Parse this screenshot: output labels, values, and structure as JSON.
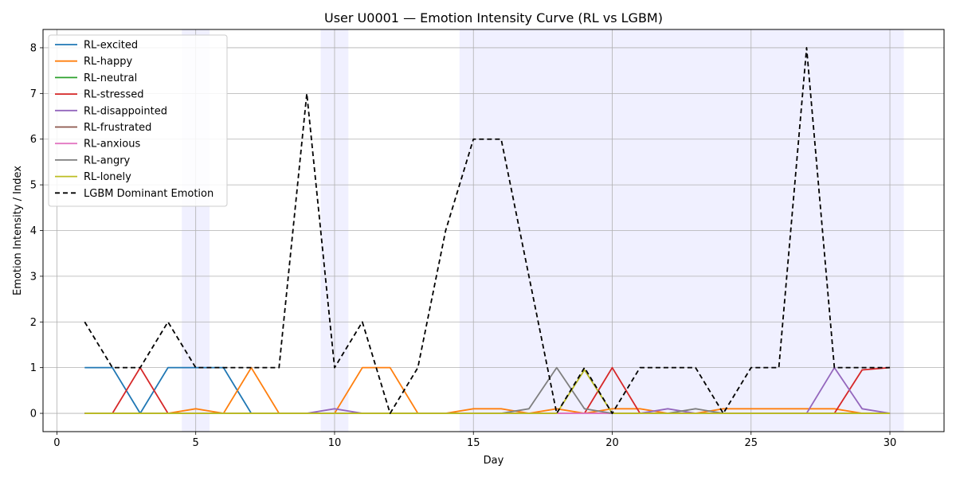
{
  "chart_data": {
    "type": "line",
    "title": "User U0001 — Emotion Intensity Curve (RL vs LGBM)",
    "xlabel": "Day",
    "ylabel": "Emotion Intensity / Index",
    "xlim": [
      -0.5,
      31.95
    ],
    "ylim": [
      -0.4,
      8.4
    ],
    "xticks": [
      0,
      5,
      10,
      15,
      20,
      25,
      30
    ],
    "yticks": [
      0,
      1,
      2,
      3,
      4,
      5,
      6,
      7,
      8
    ],
    "grid": true,
    "legend_position": "upper-left",
    "x": [
      1,
      2,
      3,
      4,
      5,
      6,
      7,
      8,
      9,
      10,
      11,
      12,
      13,
      14,
      15,
      16,
      17,
      18,
      19,
      20,
      21,
      22,
      23,
      24,
      25,
      26,
      27,
      28,
      29,
      30
    ],
    "shaded_days": [
      5,
      10,
      15,
      16,
      17,
      18,
      19,
      20,
      21,
      22,
      23,
      24,
      25,
      26,
      27,
      28,
      29,
      30
    ],
    "series": [
      {
        "name": "RL-excited",
        "color": "#1f77b4",
        "style": "solid",
        "values": [
          1,
          1,
          0,
          1,
          1,
          1,
          0,
          0,
          0,
          0,
          0,
          0,
          0,
          0,
          0,
          0,
          0,
          0,
          0,
          0,
          0,
          0,
          0,
          0,
          0,
          0,
          0,
          0,
          0,
          0
        ]
      },
      {
        "name": "RL-happy",
        "color": "#ff7f0e",
        "style": "solid",
        "values": [
          0,
          0,
          0,
          0,
          0.1,
          0,
          1,
          0,
          0,
          0,
          1,
          1,
          0,
          0,
          0.1,
          0.1,
          0,
          0.1,
          0,
          0.1,
          0.1,
          0,
          0,
          0.1,
          0.1,
          0.1,
          0.1,
          0.1,
          0,
          0
        ]
      },
      {
        "name": "RL-neutral",
        "color": "#2ca02c",
        "style": "solid",
        "values": [
          0,
          0,
          0,
          0,
          0,
          0,
          0,
          0,
          0,
          0,
          0,
          0,
          0,
          0,
          0,
          0,
          0,
          0,
          0,
          0,
          0,
          0,
          0,
          0,
          0,
          0,
          0,
          0,
          0,
          0
        ]
      },
      {
        "name": "RL-stressed",
        "color": "#d62728",
        "style": "solid",
        "values": [
          0,
          0,
          1,
          0,
          0,
          0,
          0,
          0,
          0,
          0,
          0,
          0,
          0,
          0,
          0,
          0,
          0,
          0,
          0,
          1,
          0,
          0,
          0,
          0,
          0,
          0,
          0,
          0,
          0.95,
          1
        ]
      },
      {
        "name": "RL-disappointed",
        "color": "#9467bd",
        "style": "solid",
        "values": [
          0,
          0,
          0,
          0,
          0,
          0,
          0,
          0,
          0,
          0.1,
          0,
          0,
          0,
          0,
          0,
          0,
          0,
          0,
          0,
          0,
          0,
          0.1,
          0,
          0,
          0,
          0,
          0,
          1,
          0.1,
          0
        ]
      },
      {
        "name": "RL-frustrated",
        "color": "#8c564b",
        "style": "solid",
        "values": [
          0,
          0,
          0,
          0,
          0,
          0,
          0,
          0,
          0,
          0,
          0,
          0,
          0,
          0,
          0,
          0,
          0,
          0,
          0,
          0,
          0,
          0,
          0,
          0,
          0,
          0,
          0,
          0,
          0,
          0
        ]
      },
      {
        "name": "RL-anxious",
        "color": "#e377c2",
        "style": "solid",
        "values": [
          0,
          0,
          0,
          0,
          0,
          0,
          0,
          0,
          0,
          0,
          0,
          0,
          0,
          0,
          0,
          0,
          0,
          0,
          0,
          0,
          0,
          0,
          0,
          0,
          0,
          0,
          0,
          0,
          0,
          0
        ]
      },
      {
        "name": "RL-angry",
        "color": "#7f7f7f",
        "style": "solid",
        "values": [
          0,
          0,
          0,
          0,
          0,
          0,
          0,
          0,
          0,
          0,
          0,
          0,
          0,
          0,
          0,
          0,
          0.1,
          1,
          0.1,
          0,
          0,
          0,
          0.1,
          0,
          0,
          0,
          0,
          0,
          0,
          0
        ]
      },
      {
        "name": "RL-lonely",
        "color": "#bcbd22",
        "style": "solid",
        "values": [
          0,
          0,
          0,
          0,
          0,
          0,
          0,
          0,
          0,
          0,
          0,
          0,
          0,
          0,
          0,
          0,
          0,
          0,
          0.95,
          0,
          0,
          0,
          0,
          0,
          0,
          0,
          0,
          0,
          0,
          0
        ]
      },
      {
        "name": "LGBM Dominant Emotion",
        "color": "#000000",
        "style": "dashed",
        "values": [
          2,
          1,
          1,
          2,
          1,
          1,
          1,
          1,
          7,
          1,
          2,
          0,
          1,
          4,
          6,
          6,
          3,
          0,
          1,
          0,
          1,
          1,
          1,
          0,
          1,
          1,
          8,
          1,
          1,
          1
        ]
      }
    ]
  }
}
